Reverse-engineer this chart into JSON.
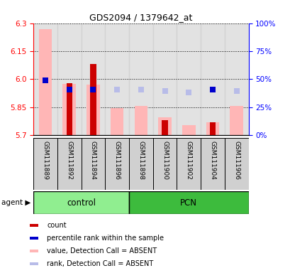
{
  "title": "GDS2094 / 1379642_at",
  "samples": [
    "GSM111889",
    "GSM111892",
    "GSM111894",
    "GSM111896",
    "GSM111898",
    "GSM111900",
    "GSM111902",
    "GSM111904",
    "GSM111906"
  ],
  "ylim": [
    5.7,
    6.3
  ],
  "yticks": [
    5.7,
    5.85,
    6.0,
    6.15,
    6.3
  ],
  "right_yticks": [
    0,
    25,
    50,
    75,
    100
  ],
  "value_absent": [
    6.27,
    5.975,
    5.97,
    5.845,
    5.855,
    5.795,
    5.755,
    5.77,
    5.855
  ],
  "rank_absent": [
    null,
    null,
    null,
    5.945,
    5.945,
    5.935,
    5.93,
    null,
    5.935
  ],
  "count_val": [
    null,
    5.98,
    6.08,
    null,
    null,
    5.78,
    null,
    5.77,
    null
  ],
  "rank_present": [
    5.995,
    5.945,
    5.945,
    null,
    null,
    null,
    null,
    5.945,
    null
  ],
  "bar_bottom": 5.7,
  "control_color": "#90ee90",
  "pcn_color": "#3dbb3d",
  "absent_bar_color": "#ffb6b6",
  "absent_rank_color": "#b8bce8",
  "count_color": "#cc0000",
  "rank_present_color": "#0000cc",
  "label_area_color": "#d0d0d0",
  "bar_width": 0.55,
  "count_bar_width": 0.25,
  "marker_size": 6
}
